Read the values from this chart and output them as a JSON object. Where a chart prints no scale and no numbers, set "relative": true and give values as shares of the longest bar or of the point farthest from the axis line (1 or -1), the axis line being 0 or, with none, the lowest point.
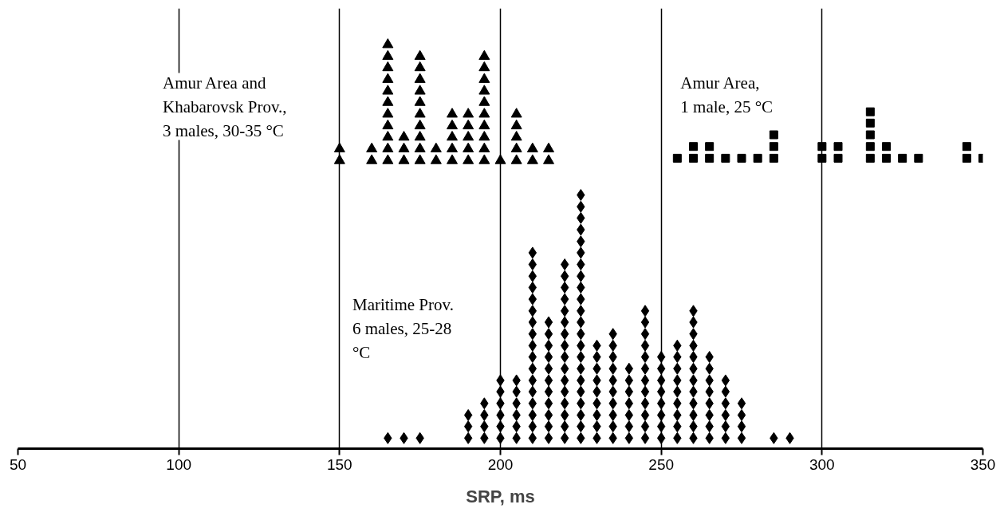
{
  "chart_data": {
    "type": "scatter",
    "xlabel": "SRP, ms",
    "relative": true,
    "xlim": [
      50,
      350
    ],
    "xticks": [
      50,
      100,
      150,
      200,
      250,
      300,
      350
    ],
    "grid": "x",
    "series": [
      {
        "name": "Amur Area and Khabarovsk Prov., 3 males, 30-35 °C",
        "marker": "triangle",
        "color": "#000000",
        "x": [
          150,
          150,
          160,
          160,
          165,
          165,
          165,
          165,
          165,
          165,
          165,
          165,
          165,
          165,
          165,
          170,
          170,
          170,
          175,
          175,
          175,
          175,
          175,
          175,
          175,
          175,
          175,
          175,
          180,
          180,
          185,
          185,
          185,
          185,
          185,
          190,
          190,
          190,
          190,
          190,
          195,
          195,
          195,
          195,
          195,
          195,
          195,
          195,
          195,
          195,
          200,
          205,
          205,
          205,
          205,
          205,
          210,
          210,
          215,
          215
        ],
        "values": [
          0.713,
          0.742,
          0.713,
          0.742,
          0.713,
          0.742,
          0.771,
          0.799,
          0.828,
          0.857,
          0.885,
          0.914,
          0.943,
          0.971,
          1.0,
          0.713,
          0.742,
          0.771,
          0.713,
          0.742,
          0.771,
          0.799,
          0.828,
          0.857,
          0.885,
          0.914,
          0.943,
          0.971,
          0.713,
          0.742,
          0.713,
          0.742,
          0.771,
          0.799,
          0.828,
          0.713,
          0.742,
          0.771,
          0.799,
          0.828,
          0.713,
          0.742,
          0.771,
          0.799,
          0.828,
          0.857,
          0.885,
          0.914,
          0.943,
          0.971,
          0.713,
          0.713,
          0.742,
          0.771,
          0.799,
          0.828,
          0.713,
          0.742,
          0.713,
          0.742
        ]
      },
      {
        "name": "Amur Area, 1 male, 25 °C",
        "marker": "square",
        "color": "#000000",
        "x": [
          255,
          260,
          260,
          265,
          265,
          270,
          275,
          280,
          285,
          285,
          285,
          300,
          300,
          305,
          305,
          315,
          315,
          315,
          315,
          315,
          320,
          320,
          325,
          330,
          345,
          345,
          350
        ],
        "values": [
          0.719,
          0.719,
          0.748,
          0.719,
          0.748,
          0.719,
          0.719,
          0.719,
          0.719,
          0.748,
          0.777,
          0.719,
          0.748,
          0.719,
          0.748,
          0.719,
          0.748,
          0.777,
          0.806,
          0.834,
          0.719,
          0.748,
          0.719,
          0.719,
          0.719,
          0.748,
          0.719
        ]
      },
      {
        "name": "Maritime Prov. 6 males, 25-28 °C",
        "marker": "diamond",
        "color": "#000000",
        "x": [
          165,
          170,
          175,
          190,
          190,
          190,
          195,
          195,
          195,
          195,
          200,
          200,
          200,
          200,
          200,
          200,
          205,
          205,
          205,
          205,
          205,
          205,
          210,
          210,
          210,
          210,
          210,
          210,
          210,
          210,
          210,
          210,
          210,
          210,
          210,
          210,
          210,
          210,
          210,
          215,
          215,
          215,
          215,
          215,
          215,
          215,
          215,
          215,
          215,
          215,
          220,
          220,
          220,
          220,
          220,
          220,
          220,
          220,
          220,
          220,
          220,
          220,
          220,
          220,
          220,
          220,
          225,
          225,
          225,
          225,
          225,
          225,
          225,
          225,
          225,
          225,
          225,
          225,
          225,
          225,
          225,
          225,
          225,
          225,
          225,
          225,
          225,
          225,
          230,
          230,
          230,
          230,
          230,
          230,
          230,
          230,
          230,
          235,
          235,
          235,
          235,
          235,
          235,
          235,
          235,
          235,
          235,
          240,
          240,
          240,
          240,
          240,
          240,
          240,
          245,
          245,
          245,
          245,
          245,
          245,
          245,
          245,
          245,
          245,
          245,
          245,
          250,
          250,
          250,
          250,
          250,
          250,
          250,
          250,
          255,
          255,
          255,
          255,
          255,
          255,
          255,
          255,
          255,
          260,
          260,
          260,
          260,
          260,
          260,
          260,
          260,
          260,
          260,
          260,
          260,
          265,
          265,
          265,
          265,
          265,
          265,
          265,
          265,
          270,
          270,
          270,
          270,
          270,
          270,
          275,
          275,
          275,
          275,
          285,
          290
        ],
        "values": [
          0.026,
          0.026,
          0.026,
          0.026,
          0.055,
          0.083,
          0.026,
          0.055,
          0.083,
          0.112,
          0.026,
          0.055,
          0.083,
          0.112,
          0.141,
          0.169,
          0.026,
          0.055,
          0.083,
          0.112,
          0.141,
          0.169,
          0.026,
          0.055,
          0.083,
          0.112,
          0.141,
          0.169,
          0.198,
          0.227,
          0.255,
          0.284,
          0.313,
          0.341,
          0.37,
          0.399,
          0.427,
          0.456,
          0.485,
          0.026,
          0.055,
          0.083,
          0.112,
          0.141,
          0.169,
          0.198,
          0.227,
          0.255,
          0.284,
          0.313,
          0.026,
          0.055,
          0.083,
          0.112,
          0.141,
          0.169,
          0.198,
          0.227,
          0.255,
          0.284,
          0.313,
          0.341,
          0.37,
          0.399,
          0.427,
          0.456,
          0.026,
          0.055,
          0.083,
          0.112,
          0.141,
          0.169,
          0.198,
          0.227,
          0.255,
          0.284,
          0.313,
          0.341,
          0.37,
          0.399,
          0.427,
          0.456,
          0.485,
          0.513,
          0.542,
          0.571,
          0.599,
          0.628,
          0.026,
          0.055,
          0.083,
          0.112,
          0.141,
          0.169,
          0.198,
          0.227,
          0.255,
          0.026,
          0.055,
          0.083,
          0.112,
          0.141,
          0.169,
          0.198,
          0.227,
          0.255,
          0.284,
          0.026,
          0.055,
          0.083,
          0.112,
          0.141,
          0.169,
          0.198,
          0.026,
          0.055,
          0.083,
          0.112,
          0.141,
          0.169,
          0.198,
          0.227,
          0.255,
          0.284,
          0.313,
          0.341,
          0.026,
          0.055,
          0.083,
          0.112,
          0.141,
          0.169,
          0.198,
          0.227,
          0.026,
          0.055,
          0.083,
          0.112,
          0.141,
          0.169,
          0.198,
          0.227,
          0.255,
          0.026,
          0.055,
          0.083,
          0.112,
          0.141,
          0.169,
          0.198,
          0.227,
          0.255,
          0.284,
          0.313,
          0.341,
          0.026,
          0.055,
          0.083,
          0.112,
          0.141,
          0.169,
          0.198,
          0.227,
          0.026,
          0.055,
          0.083,
          0.112,
          0.141,
          0.169,
          0.026,
          0.055,
          0.083,
          0.112,
          0.026,
          0.026
        ]
      }
    ]
  }
}
